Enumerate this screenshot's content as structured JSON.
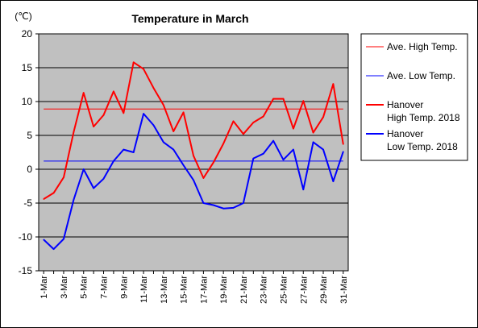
{
  "chart_data": {
    "type": "line",
    "title": "Temperature in March",
    "unit_label": "(℃)",
    "ylim": [
      -15,
      20
    ],
    "y_ticks": [
      20,
      15,
      10,
      5,
      0,
      -5,
      -10,
      -15
    ],
    "x": [
      "1-Mar",
      "2-Mar",
      "3-Mar",
      "4-Mar",
      "5-Mar",
      "6-Mar",
      "7-Mar",
      "8-Mar",
      "9-Mar",
      "10-Mar",
      "11-Mar",
      "12-Mar",
      "13-Mar",
      "14-Mar",
      "15-Mar",
      "16-Mar",
      "17-Mar",
      "18-Mar",
      "19-Mar",
      "20-Mar",
      "21-Mar",
      "22-Mar",
      "23-Mar",
      "24-Mar",
      "25-Mar",
      "26-Mar",
      "27-Mar",
      "28-Mar",
      "29-Mar",
      "30-Mar",
      "31-Mar"
    ],
    "x_tick_labels": [
      "1-Mar",
      "3-Mar",
      "5-Mar",
      "7-Mar",
      "9-Mar",
      "11-Mar",
      "13-Mar",
      "15-Mar",
      "17-Mar",
      "19-Mar",
      "21-Mar",
      "23-Mar",
      "25-Mar",
      "27-Mar",
      "29-Mar",
      "31-Mar"
    ],
    "grid": true,
    "plot_background": "#c0c0c0",
    "series": [
      {
        "name": "Ave. High Temp.",
        "color": "#ff0000",
        "width": 1,
        "constant": 8.9
      },
      {
        "name": "Ave. Low Temp.",
        "color": "#0000ff",
        "width": 1,
        "constant": 1.2
      },
      {
        "name": "Hanover High Temp. 2018",
        "legend_lines": [
          "Hanover",
          "High Temp. 2018"
        ],
        "color": "#ff0000",
        "width": 2,
        "values": [
          -4.4,
          -3.5,
          -1.2,
          5.5,
          11.3,
          6.3,
          8.0,
          11.5,
          8.3,
          15.8,
          14.8,
          12.0,
          9.5,
          5.6,
          8.4,
          2.0,
          -1.3,
          1.0,
          3.8,
          7.1,
          5.2,
          6.9,
          7.8,
          10.4,
          10.4,
          6.0,
          10.1,
          5.4,
          7.7,
          12.6,
          3.7
        ]
      },
      {
        "name": "Hanover Low Temp. 2018",
        "legend_lines": [
          "Hanover",
          "Low Temp. 2018"
        ],
        "color": "#0000ff",
        "width": 2,
        "values": [
          -10.4,
          -11.8,
          -10.3,
          -4.5,
          0.0,
          -2.8,
          -1.4,
          1.2,
          2.9,
          2.5,
          8.2,
          6.5,
          4.0,
          2.9,
          0.6,
          -1.6,
          -5.0,
          -5.3,
          -5.8,
          -5.7,
          -5.0,
          1.6,
          2.3,
          4.2,
          1.4,
          2.9,
          -3.0,
          4.0,
          2.9,
          -1.8,
          2.6
        ]
      }
    ],
    "legend_position": "right"
  }
}
